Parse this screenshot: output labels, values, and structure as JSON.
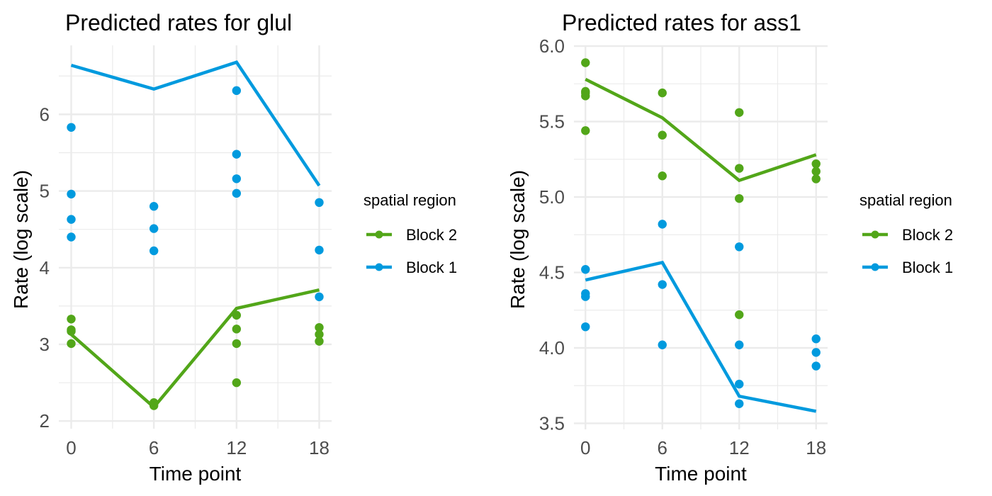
{
  "colors": {
    "block2": "#52A619",
    "block1": "#009ADE"
  },
  "chart_data": [
    {
      "type": "line",
      "title": "Predicted rates for glul",
      "xlabel": "Time point",
      "ylabel": "Rate (log scale)",
      "x_ticks": [
        0,
        6,
        12,
        18
      ],
      "x_tick_labels": [
        "0",
        "6",
        "12",
        "18"
      ],
      "y_ticks": [
        2,
        3,
        4,
        5,
        6
      ],
      "y_tick_labels": [
        "2",
        "3",
        "4",
        "5",
        "6"
      ],
      "xlim": [
        -0.9,
        18.9
      ],
      "ylim": [
        1.9,
        6.9
      ],
      "grid": true,
      "legend": {
        "title": "spatial region",
        "placement": "right",
        "entries": [
          "Block 2",
          "Block 1"
        ]
      },
      "series": [
        {
          "name": "Block 2",
          "color_key": "block2",
          "line": {
            "x": [
              0,
              6,
              12,
              18
            ],
            "y": [
              3.13,
              2.18,
              3.47,
              3.71
            ]
          },
          "points": [
            {
              "x": 0,
              "y": 3.33
            },
            {
              "x": 0,
              "y": 3.19
            },
            {
              "x": 0,
              "y": 3.17
            },
            {
              "x": 0,
              "y": 3.01
            },
            {
              "x": 6,
              "y": 2.24
            },
            {
              "x": 6,
              "y": 2.2
            },
            {
              "x": 12,
              "y": 3.38
            },
            {
              "x": 12,
              "y": 3.2
            },
            {
              "x": 12,
              "y": 3.01
            },
            {
              "x": 12,
              "y": 2.5
            },
            {
              "x": 18,
              "y": 3.22
            },
            {
              "x": 18,
              "y": 3.13
            },
            {
              "x": 18,
              "y": 3.04
            }
          ]
        },
        {
          "name": "Block 1",
          "color_key": "block1",
          "line": {
            "x": [
              0,
              6,
              12,
              18
            ],
            "y": [
              6.64,
              6.33,
              6.68,
              5.07
            ]
          },
          "points": [
            {
              "x": 0,
              "y": 5.83
            },
            {
              "x": 0,
              "y": 4.96
            },
            {
              "x": 0,
              "y": 4.63
            },
            {
              "x": 0,
              "y": 4.4
            },
            {
              "x": 6,
              "y": 4.8
            },
            {
              "x": 6,
              "y": 4.51
            },
            {
              "x": 6,
              "y": 4.22
            },
            {
              "x": 12,
              "y": 6.31
            },
            {
              "x": 12,
              "y": 5.48
            },
            {
              "x": 12,
              "y": 5.16
            },
            {
              "x": 12,
              "y": 4.97
            },
            {
              "x": 18,
              "y": 4.85
            },
            {
              "x": 18,
              "y": 4.23
            },
            {
              "x": 18,
              "y": 3.62
            }
          ]
        }
      ]
    },
    {
      "type": "line",
      "title": "Predicted rates for ass1",
      "xlabel": "Time point",
      "ylabel": "Rate (log scale)",
      "x_ticks": [
        0,
        6,
        12,
        18
      ],
      "x_tick_labels": [
        "0",
        "6",
        "12",
        "18"
      ],
      "y_ticks": [
        3.5,
        4.0,
        4.5,
        5.0,
        5.5,
        6.0
      ],
      "y_tick_labels": [
        "3.5",
        "4.0",
        "4.5",
        "5.0",
        "5.5",
        "6.0"
      ],
      "xlim": [
        -0.9,
        18.9
      ],
      "ylim": [
        3.46,
        6.005
      ],
      "grid": true,
      "legend": {
        "title": "spatial region",
        "placement": "right",
        "entries": [
          "Block 2",
          "Block 1"
        ]
      },
      "series": [
        {
          "name": "Block 2",
          "color_key": "block2",
          "line": {
            "x": [
              0,
              6,
              12,
              18
            ],
            "y": [
              5.78,
              5.525,
              5.11,
              5.28
            ]
          },
          "points": [
            {
              "x": 0,
              "y": 5.89
            },
            {
              "x": 0,
              "y": 5.7
            },
            {
              "x": 0,
              "y": 5.69
            },
            {
              "x": 0,
              "y": 5.67
            },
            {
              "x": 0,
              "y": 5.44
            },
            {
              "x": 6,
              "y": 5.69
            },
            {
              "x": 6,
              "y": 5.41
            },
            {
              "x": 6,
              "y": 5.14
            },
            {
              "x": 12,
              "y": 5.56
            },
            {
              "x": 12,
              "y": 5.19
            },
            {
              "x": 12,
              "y": 4.99
            },
            {
              "x": 12,
              "y": 4.22
            },
            {
              "x": 18,
              "y": 5.22
            },
            {
              "x": 18,
              "y": 5.17
            },
            {
              "x": 18,
              "y": 5.12
            }
          ]
        },
        {
          "name": "Block 1",
          "color_key": "block1",
          "line": {
            "x": [
              0,
              6,
              12,
              18
            ],
            "y": [
              4.45,
              4.566,
              3.68,
              3.58
            ]
          },
          "points": [
            {
              "x": 0,
              "y": 4.52
            },
            {
              "x": 0,
              "y": 4.36
            },
            {
              "x": 0,
              "y": 4.34
            },
            {
              "x": 0,
              "y": 4.14
            },
            {
              "x": 6,
              "y": 4.82
            },
            {
              "x": 6,
              "y": 4.42
            },
            {
              "x": 6,
              "y": 4.02
            },
            {
              "x": 12,
              "y": 4.67
            },
            {
              "x": 12,
              "y": 4.02
            },
            {
              "x": 12,
              "y": 3.76
            },
            {
              "x": 12,
              "y": 3.63
            },
            {
              "x": 18,
              "y": 4.06
            },
            {
              "x": 18,
              "y": 3.97
            },
            {
              "x": 18,
              "y": 3.88
            }
          ]
        }
      ]
    }
  ]
}
